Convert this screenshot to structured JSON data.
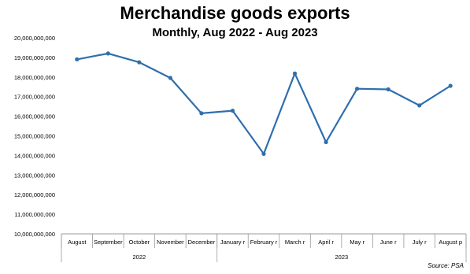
{
  "chart_data": {
    "type": "line",
    "title": "Merchandise goods exports",
    "subtitle": "Monthly, Aug 2022 - Aug 2023",
    "categories": [
      "August",
      "September",
      "October",
      "November",
      "December",
      "January r",
      "February r",
      "March r",
      "April r",
      "May r",
      "June r",
      "July r",
      "August p"
    ],
    "groups": [
      {
        "label": "2022",
        "from": 0,
        "to": 4
      },
      {
        "label": "2023",
        "from": 5,
        "to": 12
      }
    ],
    "values": [
      18900000000,
      19200000000,
      18750000000,
      17950000000,
      16150000000,
      16280000000,
      14080000000,
      18180000000,
      14680000000,
      17400000000,
      17370000000,
      16550000000,
      17550000000
    ],
    "ylim": [
      10000000000,
      20000000000
    ],
    "yticks": [
      "10,000,000,000",
      "11,000,000,000",
      "12,000,000,000",
      "13,000,000,000",
      "14,000,000,000",
      "15,000,000,000",
      "16,000,000,000",
      "17,000,000,000",
      "18,000,000,000",
      "19,000,000,000",
      "20,000,000,000"
    ],
    "ytick_values": [
      10000000000,
      11000000000,
      12000000000,
      13000000000,
      14000000000,
      15000000000,
      16000000000,
      17000000000,
      18000000000,
      19000000000,
      20000000000
    ],
    "line_color": "#2f6fad",
    "grid": false,
    "legend": "none",
    "source": "Source: PSA"
  }
}
